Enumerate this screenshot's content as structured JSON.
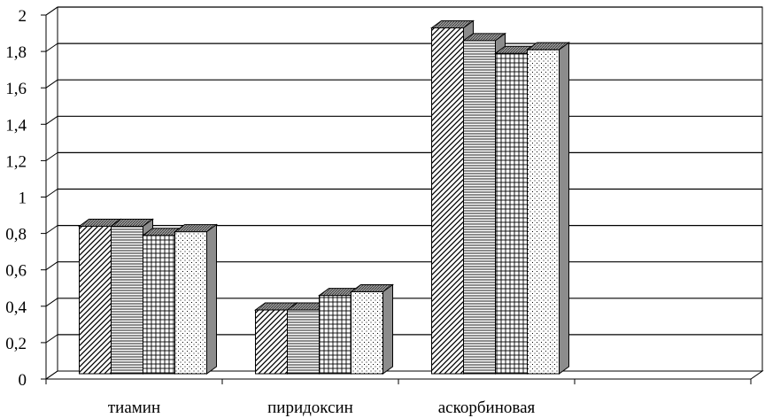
{
  "chart_data": {
    "type": "bar",
    "style": "3d-clustered",
    "categories": [
      "тиамин",
      "пиридоксин",
      "аскорбиновая"
    ],
    "y_ticks": [
      "0",
      "0,2",
      "0,4",
      "0,6",
      "0,8",
      "1",
      "1,2",
      "1,4",
      "1,6",
      "1,8",
      "2"
    ],
    "ylim": [
      0,
      2
    ],
    "grid": true,
    "legend": "none",
    "series": [
      {
        "values": [
          0.82,
          0.36,
          1.91
        ],
        "pattern": "diagonal"
      },
      {
        "values": [
          0.82,
          0.36,
          1.84
        ],
        "pattern": "horizontal"
      },
      {
        "values": [
          0.77,
          0.44,
          1.77
        ],
        "pattern": "grid"
      },
      {
        "values": [
          0.79,
          0.46,
          1.79
        ],
        "pattern": "dots"
      }
    ]
  }
}
